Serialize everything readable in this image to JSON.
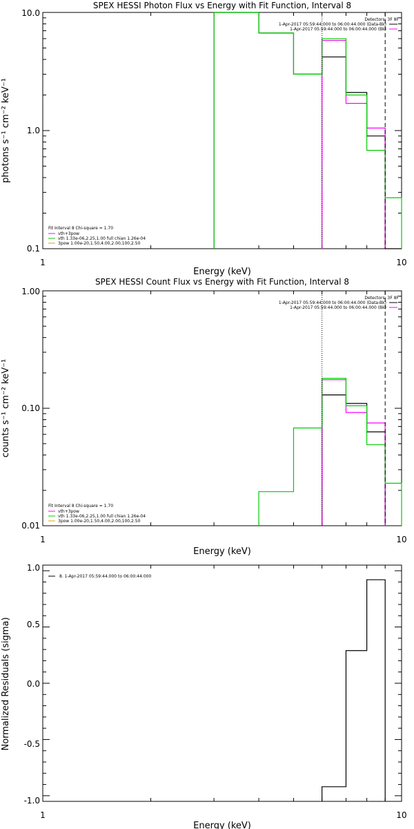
{
  "chart_data": [
    {
      "type": "line",
      "title": "SPEX HESSI Photon Flux vs Energy with Fit Function, Interval 8",
      "xlabel": "Energy (keV)",
      "ylabel": "photons s⁻¹ cm⁻² keV⁻¹",
      "xscale": "log",
      "yscale": "log",
      "xlim": [
        1,
        10
      ],
      "ylim": [
        0.1,
        10
      ],
      "xticks": [
        "1",
        "10"
      ],
      "yticks": [
        "0.1",
        "1.0",
        "10.0"
      ],
      "header_lines": [
        "Detectors: 3F 8F",
        "1-Apr-2017 05:59:44.000 to 06:00:44.000 (Data-Bk)",
        "1-Apr-2017 05:59:44.000 to 06:00:44.000 (Bk)"
      ],
      "legend": [
        "Fit Interval 8   Chi-square = 1.70",
        "vth+3pow",
        "vth 1.33e-06,2.25,1.00  full chian 1.26e-04",
        "3pow 1.00e-20,1.50,4.00,2.00,100,2.50"
      ],
      "colors": {
        "data": "#000000",
        "model": "#ff00ff",
        "vth": "#00cc00"
      },
      "vlines": [
        6,
        9
      ],
      "series": [
        {
          "step_edges": [
            3,
            4,
            5,
            6,
            7,
            8,
            9,
            10
          ],
          "values": [
            10,
            6.7,
            3.0,
            4.2,
            2.1,
            0.9,
            0.001
          ]
        },
        {
          "step_edges": [
            6,
            7,
            8,
            9
          ],
          "values": [
            5.8,
            1.7,
            1.05
          ]
        },
        {
          "step_edges": [
            3,
            4,
            5,
            6,
            7,
            8,
            9,
            10
          ],
          "values": [
            10,
            6.7,
            3.0,
            6.0,
            2.0,
            0.68,
            0.27
          ]
        }
      ]
    },
    {
      "type": "line",
      "title": "SPEX HESSI Count Flux vs Energy with Fit Function, Interval 8",
      "xlabel": "Energy (keV)",
      "ylabel": "counts s⁻¹ cm⁻² keV⁻¹",
      "xscale": "log",
      "yscale": "log",
      "xlim": [
        1,
        10
      ],
      "ylim": [
        0.01,
        1
      ],
      "xticks": [
        "1",
        "10"
      ],
      "yticks": [
        "0.01",
        "0.10",
        "1.00"
      ],
      "header_lines": [
        "Detectors: 3F 8F",
        "1-Apr-2017 05:59:44.000 to 06:00:44.000 (Data-Bk)",
        "1-Apr-2017 05:59:44.000 to 06:00:44.000 (Bk)"
      ],
      "legend": [
        "Fit Interval 8   Chi-square = 1.70",
        "vth+3pow",
        "vth 1.33e-06,2.25,1.00  full chian 1.26e-04",
        "3pow 1.00e-20,1.50,4.00,2.00,100,2.50"
      ],
      "colors": {
        "data": "#000000",
        "model": "#ff00ff",
        "vth": "#00cc00"
      },
      "vlines": [
        6,
        9
      ],
      "series": [
        {
          "step_edges": [
            6,
            7,
            8,
            9
          ],
          "values": [
            0.13,
            0.11,
            0.063
          ]
        },
        {
          "step_edges": [
            6,
            7,
            8,
            9
          ],
          "values": [
            0.175,
            0.092,
            0.075
          ]
        },
        {
          "step_edges": [
            4,
            5,
            6,
            7,
            8,
            9,
            10
          ],
          "values": [
            0.0195,
            0.068,
            0.18,
            0.105,
            0.049,
            0.023
          ]
        }
      ]
    },
    {
      "type": "line",
      "title": "",
      "xlabel": "Energy (keV)",
      "ylabel": "Normalized Residuals (sigma)",
      "xscale": "log",
      "xlim": [
        1,
        10
      ],
      "ylim": [
        -1.05,
        1.05
      ],
      "xticks": [
        "1",
        "10"
      ],
      "yticks": [
        "-1.0",
        "-0.5",
        "0.0",
        "0.5",
        "1.0"
      ],
      "legend": [
        "8.  1-Apr-2017 05:59:44.000 to 06:00:44.000"
      ],
      "series": [
        {
          "step_edges": [
            6,
            7,
            8,
            9
          ],
          "values": [
            -0.92,
            0.29,
            0.92
          ]
        }
      ]
    }
  ]
}
